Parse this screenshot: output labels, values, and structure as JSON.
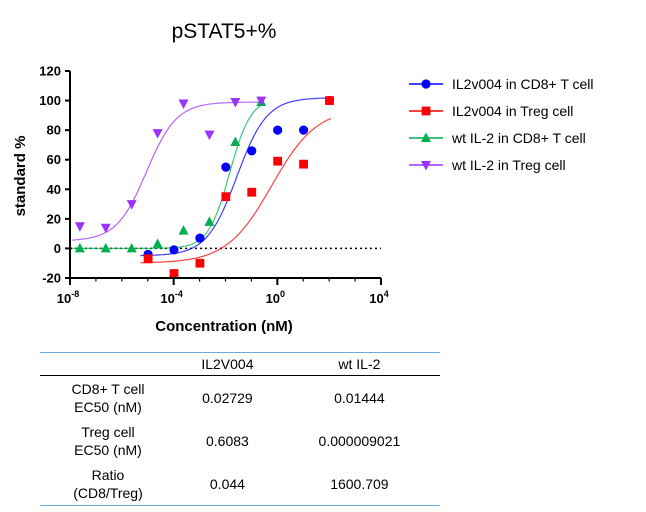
{
  "chart_data": {
    "type": "scatter",
    "title": "pSTAT5+%",
    "xlabel": "Concentration (nM)",
    "ylabel": "standard %",
    "x_scale": "log",
    "xlim": [
      1e-08,
      10000
    ],
    "ylim": [
      -20,
      120
    ],
    "x_ticks": [
      {
        "value": 1e-08,
        "base": "10",
        "exp": "-8"
      },
      {
        "value": 0.0001,
        "base": "10",
        "exp": "-4"
      },
      {
        "value": 1,
        "base": "10",
        "exp": "0"
      },
      {
        "value": 10000,
        "base": "10",
        "exp": "4"
      }
    ],
    "y_ticks": [
      -20,
      0,
      20,
      40,
      60,
      80,
      100,
      120
    ],
    "reference_line_y": 0,
    "legend_position": "right",
    "series": [
      {
        "name": "IL2v004 in CD8+ T cell",
        "color": "#0000ff",
        "marker": "circle",
        "points": [
          {
            "x": 1.03e-05,
            "y": -4
          },
          {
            "x": 0.000103,
            "y": -1
          },
          {
            "x": 0.00103,
            "y": 7
          },
          {
            "x": 0.0103,
            "y": 55
          },
          {
            "x": 0.103,
            "y": 66
          },
          {
            "x": 1.03,
            "y": 80
          },
          {
            "x": 10.3,
            "y": 80
          },
          {
            "x": 103,
            "y": 100
          }
        ],
        "fit": {
          "bottom": -5,
          "top": 102,
          "ec50": 0.02729,
          "hill": 0.75
        }
      },
      {
        "name": "IL2v004 in Treg cell",
        "color": "#ff0000",
        "marker": "square",
        "points": [
          {
            "x": 1.03e-05,
            "y": -7
          },
          {
            "x": 0.000103,
            "y": -17
          },
          {
            "x": 0.00103,
            "y": -10
          },
          {
            "x": 0.0103,
            "y": 35
          },
          {
            "x": 0.103,
            "y": 38
          },
          {
            "x": 1.03,
            "y": 59
          },
          {
            "x": 10.3,
            "y": 57
          },
          {
            "x": 103,
            "y": 100
          }
        ],
        "fit": {
          "bottom": -10,
          "top": 95,
          "ec50": 0.6083,
          "hill": 0.5
        }
      },
      {
        "name": "wt IL-2 in CD8+ T cell",
        "color": "#00b050",
        "marker": "triangle-up",
        "points": [
          {
            "x": 2.4e-08,
            "y": 0
          },
          {
            "x": 2.4e-07,
            "y": 0
          },
          {
            "x": 2.4e-06,
            "y": 0
          },
          {
            "x": 2.4e-05,
            "y": 3
          },
          {
            "x": 0.00024,
            "y": 12
          },
          {
            "x": 0.0024,
            "y": 18
          },
          {
            "x": 0.024,
            "y": 72
          },
          {
            "x": 0.24,
            "y": 99
          }
        ],
        "fit": {
          "bottom": 0,
          "top": 102,
          "ec50": 0.01444,
          "hill": 1.05
        }
      },
      {
        "name": "wt IL-2 in Treg cell",
        "color": "#9933ff",
        "marker": "triangle-down",
        "points": [
          {
            "x": 2.4e-08,
            "y": 15
          },
          {
            "x": 2.4e-07,
            "y": 14
          },
          {
            "x": 2.4e-06,
            "y": 30
          },
          {
            "x": 2.4e-05,
            "y": 78
          },
          {
            "x": 0.00024,
            "y": 98
          },
          {
            "x": 0.0024,
            "y": 77
          },
          {
            "x": 0.024,
            "y": 99
          },
          {
            "x": 0.24,
            "y": 100
          }
        ],
        "fit": {
          "bottom": 5,
          "top": 99,
          "ec50": 9.021e-06,
          "hill": 0.75
        }
      }
    ]
  },
  "table": {
    "headers": [
      "",
      "IL2V004",
      "wt IL-2"
    ],
    "rows": [
      {
        "label": [
          "CD8+ T cell",
          "EC50 (nM)"
        ],
        "values": [
          "0.02729",
          "0.01444"
        ]
      },
      {
        "label": [
          "Treg cell",
          "EC50 (nM)"
        ],
        "values": [
          "0.6083",
          "0.000009021"
        ]
      },
      {
        "label": [
          "Ratio",
          "(CD8/Treg)"
        ],
        "values": [
          "0.044",
          "1600.709"
        ]
      }
    ]
  }
}
